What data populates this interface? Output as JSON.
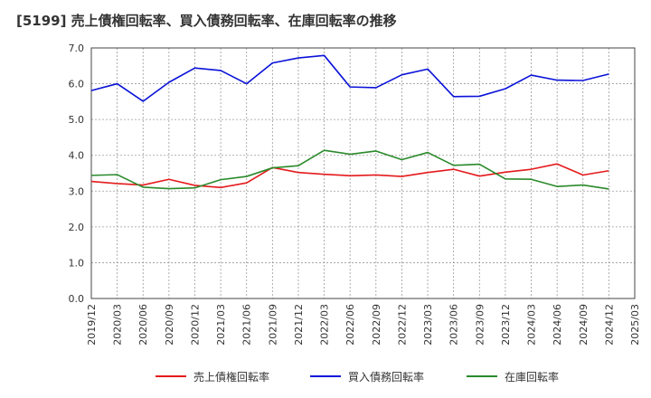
{
  "chart_data": {
    "type": "line",
    "title": "[5199]  売上債権回転率、買入債務回転率、在庫回転率の推移",
    "xlabel": "",
    "ylabel": "",
    "ylim": [
      0,
      7
    ],
    "yticks": [
      "0.0",
      "1.0",
      "2.0",
      "3.0",
      "4.0",
      "5.0",
      "6.0",
      "7.0"
    ],
    "categories": [
      "2019/12",
      "2020/03",
      "2020/06",
      "2020/09",
      "2020/12",
      "2021/03",
      "2021/06",
      "2021/09",
      "2021/12",
      "2022/03",
      "2022/06",
      "2022/09",
      "2022/12",
      "2023/03",
      "2023/06",
      "2023/09",
      "2023/12",
      "2024/03",
      "2024/06",
      "2024/09",
      "2024/12",
      "2025/03"
    ],
    "grid": true,
    "legend_position": "bottom",
    "series": [
      {
        "name": "売上債権回転率",
        "color": "#e41a1c",
        "values": [
          3.27,
          3.21,
          3.17,
          3.33,
          3.16,
          3.1,
          3.23,
          3.66,
          3.52,
          3.47,
          3.43,
          3.45,
          3.41,
          3.52,
          3.61,
          3.42,
          3.53,
          3.61,
          3.76,
          3.45,
          3.57,
          null
        ]
      },
      {
        "name": "買入債務回転率",
        "color": "#0a12d8",
        "values": [
          5.81,
          6.0,
          5.51,
          6.04,
          6.44,
          6.37,
          6.0,
          6.58,
          6.72,
          6.79,
          5.91,
          5.89,
          6.25,
          6.41,
          5.64,
          5.65,
          5.86,
          6.24,
          6.1,
          6.09,
          6.27,
          null
        ]
      },
      {
        "name": "在庫回転率",
        "color": "#2a8a2a",
        "values": [
          3.44,
          3.46,
          3.11,
          3.07,
          3.09,
          3.32,
          3.41,
          3.65,
          3.71,
          4.14,
          4.03,
          4.12,
          3.88,
          4.08,
          3.72,
          3.75,
          3.34,
          3.33,
          3.13,
          3.17,
          3.06,
          null
        ]
      }
    ]
  }
}
